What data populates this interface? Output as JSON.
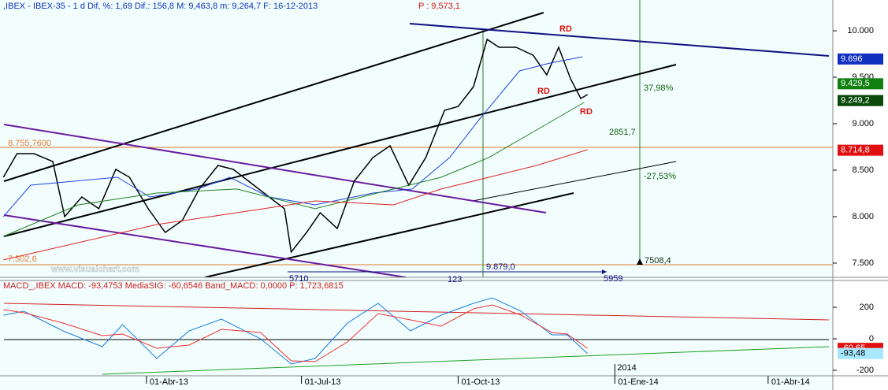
{
  "chart_data": [
    {
      "type": "line",
      "title": ",IBEX - IBEX-35 -  1 d Dif, %: 1,69 Dif.: 156,8 M: 9,463,8 m: 9,264,7 F: 16-12-2013",
      "subtitle": "P : 9,573,1",
      "xlim": [
        "2013-01-05",
        "2014-05-09"
      ],
      "ylim": [
        7347,
        10331
      ],
      "yticks": [
        {
          "value": 10000,
          "label": "10.000"
        },
        {
          "value": 9500,
          "label": "9.500"
        },
        {
          "value": 9000,
          "label": "9.000"
        },
        {
          "value": 8500,
          "label": "8.500"
        },
        {
          "value": 8000,
          "label": "8.000"
        },
        {
          "value": 7500,
          "label": "7.500"
        }
      ],
      "series": [
        {
          "color": "#000000",
          "x": [
            "2013-01-07",
            "2013-01-15",
            "2013-01-25",
            "2013-02-05",
            "2013-02-12",
            "2013-02-22",
            "2013-03-04",
            "2013-03-14",
            "2013-03-22",
            "2013-04-02",
            "2013-04-12",
            "2013-04-22",
            "2013-05-02",
            "2013-05-13",
            "2013-05-22",
            "2013-06-03",
            "2013-06-12",
            "2013-06-21",
            "2013-06-25",
            "2013-07-04",
            "2013-07-12",
            "2013-07-22",
            "2013-08-01",
            "2013-08-12",
            "2013-08-22",
            "2013-09-02",
            "2013-09-12",
            "2013-09-23",
            "2013-10-01",
            "2013-10-10",
            "2013-10-18",
            "2013-10-25",
            "2013-11-04",
            "2013-11-14",
            "2013-11-22",
            "2013-11-29",
            "2013-12-06",
            "2013-12-12",
            "2013-12-16"
          ],
          "values": [
            8424,
            8678,
            8678,
            8593,
            8000,
            8212,
            8085,
            8508,
            8424,
            8085,
            7830,
            7958,
            8297,
            8551,
            8508,
            8339,
            8212,
            8085,
            7619,
            7830,
            8042,
            7873,
            8381,
            8636,
            8763,
            8339,
            8636,
            9144,
            9186,
            9398,
            9907,
            9822,
            9822,
            9737,
            9525,
            9822,
            9483,
            9271,
            9314
          ]
        },
        {
          "color": "#2040e0",
          "x": [
            "2013-01-07",
            "2013-01-23",
            "2013-03-15",
            "2013-04-03",
            "2013-05-01",
            "2013-05-20",
            "2013-06-12",
            "2013-07-09",
            "2013-08-12",
            "2013-09-04",
            "2013-09-26",
            "2013-10-14",
            "2013-11-06",
            "2013-11-24",
            "2013-12-13"
          ],
          "values": [
            8000,
            8339,
            8424,
            8212,
            8297,
            8424,
            8212,
            8127,
            8254,
            8297,
            8636,
            9059,
            9568,
            9653,
            9720
          ]
        },
        {
          "color": "#208020",
          "x": [
            "2013-01-07",
            "2013-02-20",
            "2013-04-07",
            "2013-05-24",
            "2013-07-09",
            "2013-08-24",
            "2013-09-21",
            "2013-10-19",
            "2013-11-16",
            "2013-12-14"
          ],
          "values": [
            7788,
            8127,
            8254,
            8297,
            8085,
            8297,
            8424,
            8636,
            8932,
            9229
          ]
        },
        {
          "color": "#e02020",
          "x": [
            "2013-01-07",
            "2013-04-07",
            "2013-05-24",
            "2013-07-09",
            "2013-08-24",
            "2013-09-21",
            "2013-10-19",
            "2013-11-16",
            "2013-12-16"
          ],
          "values": [
            7534,
            7915,
            8042,
            8169,
            8127,
            8297,
            8424,
            8551,
            8720
          ]
        }
      ],
      "price_markers": [
        {
          "value": 9696,
          "label": "9.696",
          "color": "#1030c0"
        },
        {
          "value": 9429.5,
          "label": "9.429,5",
          "color": "#108010"
        },
        {
          "value": 9249.2,
          "label": "9.249,2",
          "color": "#0a4a0a"
        },
        {
          "value": 8714.8,
          "label": "8.714,8",
          "color": "#e01010"
        }
      ],
      "annotations": [
        "RD",
        "RD",
        "RD",
        "37,98%",
        "2851,7",
        "-27,53%",
        "8.755,7600",
        "7.502,6",
        "7508,4",
        "9.879,0",
        "5710",
        "123",
        "5959",
        "www.visualchart.com"
      ]
    },
    {
      "type": "line",
      "title": "MACD_,IBEX MACD: -93,4753 MediaSIG: -60,6546 Band_MACD: 0,0000 P: 1,723,6815",
      "xlim": [
        "2013-01-05",
        "2014-05-09"
      ],
      "ylim": [
        -235,
        370
      ],
      "yticks": [
        200,
        0,
        -200
      ],
      "xticks": [
        {
          "value": "2013-04-01",
          "label": "01-Abr-13"
        },
        {
          "value": "2013-07-01",
          "label": "01-Jul-13"
        },
        {
          "value": "2013-10-01",
          "label": "01-Oct-13"
        },
        {
          "value": "2014-01-01",
          "label": "01-Ene-14"
        },
        {
          "value": "2014-04-01",
          "label": "01-Abr-14"
        }
      ],
      "year_marker": {
        "value": "2014-01-01",
        "label": "2014"
      },
      "x": [
        "2013-01-07",
        "2013-01-19",
        "2013-02-11",
        "2013-03-06",
        "2013-03-18",
        "2013-04-07",
        "2013-04-26",
        "2013-05-15",
        "2013-06-07",
        "2013-06-25",
        "2013-07-09",
        "2013-07-28",
        "2013-08-15",
        "2013-09-03",
        "2013-09-21",
        "2013-10-10",
        "2013-10-21",
        "2013-11-07",
        "2013-11-25",
        "2013-12-04",
        "2013-12-16"
      ],
      "series": [
        {
          "color": "#1a7ae0",
          "values": [
            150,
            175,
            50,
            -50,
            90,
            -125,
            50,
            125,
            0,
            -160,
            -125,
            100,
            225,
            50,
            150,
            225,
            260,
            175,
            25,
            25,
            -93.4753
          ]
        },
        {
          "color": "#f03030",
          "values": [
            185,
            165,
            100,
            20,
            30,
            -60,
            -40,
            60,
            40,
            -140,
            -145,
            -20,
            160,
            120,
            80,
            190,
            215,
            150,
            40,
            30,
            -60.6546
          ]
        }
      ],
      "markers": [
        {
          "value": -60.6546,
          "label": "-60,65",
          "color": "#e01010"
        },
        {
          "value": -93.4753,
          "label": "-93,48",
          "color": "#a8e8ff"
        }
      ]
    }
  ]
}
